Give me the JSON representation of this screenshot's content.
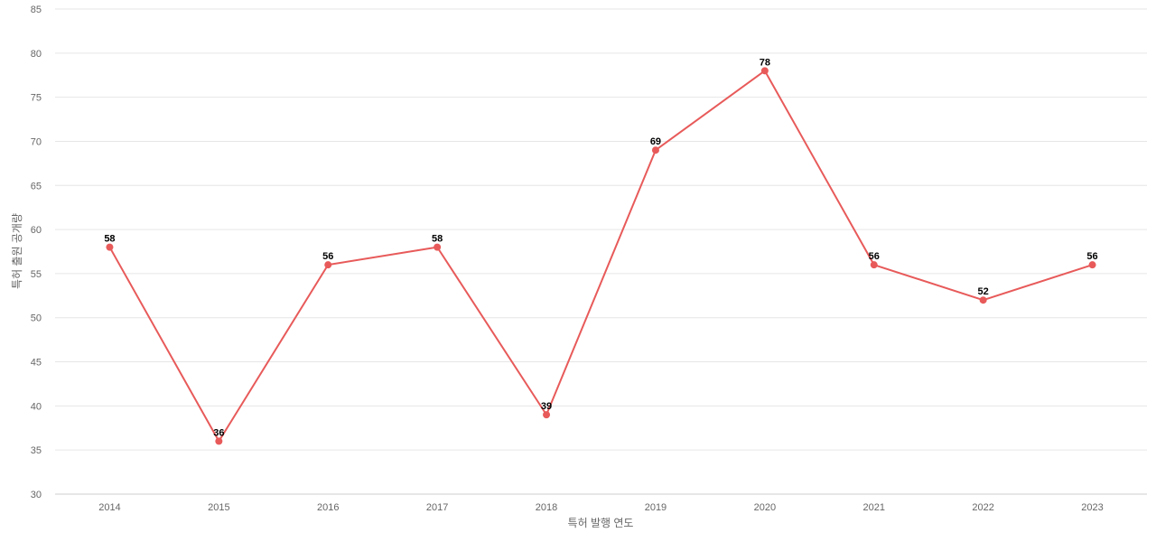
{
  "chart_data": {
    "type": "line",
    "title": "",
    "xlabel": "특허 발행 연도",
    "ylabel": "특허 출원 공개량",
    "categories": [
      "2014",
      "2015",
      "2016",
      "2017",
      "2018",
      "2019",
      "2020",
      "2021",
      "2022",
      "2023"
    ],
    "series": [
      {
        "values": [
          58,
          36,
          56,
          58,
          39,
          69,
          78,
          56,
          52,
          56
        ],
        "color": "#e85a5a"
      }
    ],
    "ylim": [
      30,
      85
    ],
    "yticks": [
      "30",
      "35",
      "40",
      "45",
      "50",
      "55",
      "60",
      "65",
      "70",
      "75",
      "80",
      "85"
    ],
    "grid": true,
    "data_labels": true,
    "legend": "none"
  }
}
